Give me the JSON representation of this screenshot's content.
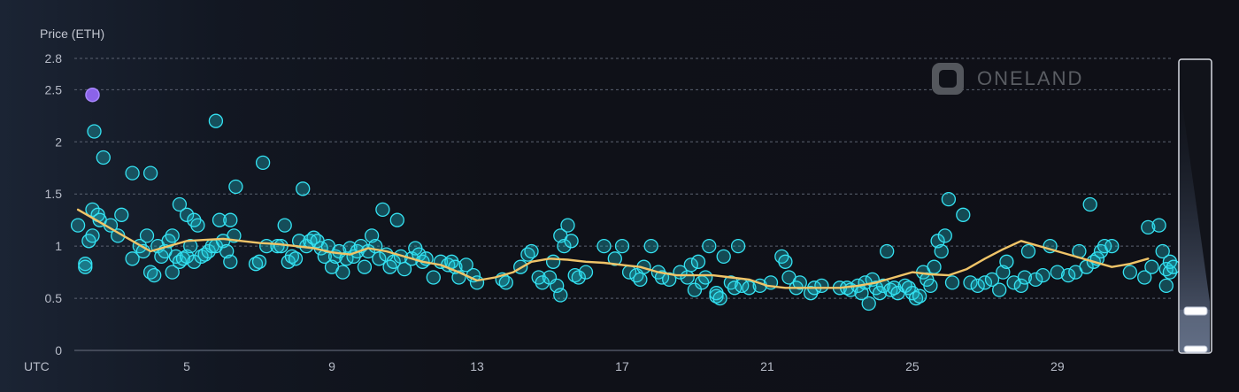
{
  "chart_data": {
    "type": "scatter",
    "ylabel": "Price (ETH)",
    "x_axis_label": "UTC",
    "ylim": [
      0,
      2.8
    ],
    "y_ticks": [
      {
        "value": 0,
        "label": "0"
      },
      {
        "value": 0.5,
        "label": "0.5"
      },
      {
        "value": 1,
        "label": "1"
      },
      {
        "value": 1.5,
        "label": "1.5"
      },
      {
        "value": 2,
        "label": "2"
      },
      {
        "value": 2.5,
        "label": "2.5"
      },
      {
        "value": 2.8,
        "label": "2.8"
      }
    ],
    "xlim": [
      1.9,
      32.2
    ],
    "x_ticks": [
      {
        "value": 5,
        "label": "5"
      },
      {
        "value": 9,
        "label": "9"
      },
      {
        "value": 13,
        "label": "13"
      },
      {
        "value": 17,
        "label": "17"
      },
      {
        "value": 21,
        "label": "21"
      },
      {
        "value": 25,
        "label": "25"
      },
      {
        "value": 29,
        "label": "29"
      }
    ],
    "grid": "horizontal dashed",
    "highlight_point": {
      "x": 2.4,
      "y": 2.45,
      "color": "#8b63e8"
    },
    "sales": [
      [
        2.0,
        1.2
      ],
      [
        2.2,
        0.83
      ],
      [
        2.2,
        0.8
      ],
      [
        2.3,
        1.05
      ],
      [
        2.4,
        1.35
      ],
      [
        2.4,
        1.1
      ],
      [
        2.45,
        2.1
      ],
      [
        2.55,
        1.3
      ],
      [
        2.6,
        1.25
      ],
      [
        2.7,
        1.85
      ],
      [
        2.9,
        1.2
      ],
      [
        3.1,
        1.1
      ],
      [
        3.2,
        1.3
      ],
      [
        3.5,
        1.7
      ],
      [
        3.5,
        0.88
      ],
      [
        3.7,
        1.0
      ],
      [
        3.8,
        0.95
      ],
      [
        3.9,
        1.1
      ],
      [
        4.0,
        1.7
      ],
      [
        4.0,
        0.75
      ],
      [
        4.1,
        0.72
      ],
      [
        4.2,
        1.0
      ],
      [
        4.3,
        0.9
      ],
      [
        4.4,
        0.95
      ],
      [
        4.5,
        1.05
      ],
      [
        4.6,
        0.75
      ],
      [
        4.6,
        1.1
      ],
      [
        4.7,
        0.9
      ],
      [
        4.8,
        1.4
      ],
      [
        4.8,
        0.85
      ],
      [
        4.9,
        0.88
      ],
      [
        5.0,
        0.9
      ],
      [
        5.0,
        1.3
      ],
      [
        5.1,
        1.0
      ],
      [
        5.2,
        0.85
      ],
      [
        5.2,
        1.25
      ],
      [
        5.3,
        1.2
      ],
      [
        5.4,
        0.9
      ],
      [
        5.5,
        0.92
      ],
      [
        5.6,
        0.95
      ],
      [
        5.7,
        1.0
      ],
      [
        5.8,
        1.0
      ],
      [
        5.8,
        2.2
      ],
      [
        5.9,
        1.25
      ],
      [
        6.0,
        1.05
      ],
      [
        6.1,
        0.95
      ],
      [
        6.2,
        1.25
      ],
      [
        6.2,
        0.85
      ],
      [
        6.3,
        1.1
      ],
      [
        6.35,
        1.57
      ],
      [
        6.9,
        0.83
      ],
      [
        7.0,
        0.85
      ],
      [
        7.1,
        1.8
      ],
      [
        7.2,
        1.0
      ],
      [
        7.5,
        1.0
      ],
      [
        7.6,
        1.0
      ],
      [
        7.7,
        1.2
      ],
      [
        7.8,
        0.85
      ],
      [
        7.9,
        0.9
      ],
      [
        8.0,
        0.88
      ],
      [
        8.1,
        1.05
      ],
      [
        8.2,
        1.55
      ],
      [
        8.3,
        1.0
      ],
      [
        8.4,
        1.05
      ],
      [
        8.5,
        1.08
      ],
      [
        8.6,
        1.05
      ],
      [
        8.7,
        0.98
      ],
      [
        8.8,
        0.9
      ],
      [
        8.9,
        1.0
      ],
      [
        9.0,
        0.8
      ],
      [
        9.1,
        0.9
      ],
      [
        9.2,
        0.95
      ],
      [
        9.3,
        0.75
      ],
      [
        9.4,
        0.88
      ],
      [
        9.5,
        0.98
      ],
      [
        9.6,
        0.9
      ],
      [
        9.7,
        0.95
      ],
      [
        9.8,
        1.0
      ],
      [
        9.9,
        0.8
      ],
      [
        10.0,
        0.95
      ],
      [
        10.1,
        1.1
      ],
      [
        10.2,
        1.0
      ],
      [
        10.3,
        0.88
      ],
      [
        10.4,
        1.35
      ],
      [
        10.5,
        0.92
      ],
      [
        10.6,
        0.8
      ],
      [
        10.7,
        0.85
      ],
      [
        10.8,
        1.25
      ],
      [
        10.9,
        0.9
      ],
      [
        11.0,
        0.78
      ],
      [
        11.2,
        0.88
      ],
      [
        11.3,
        0.98
      ],
      [
        11.4,
        0.92
      ],
      [
        11.5,
        0.85
      ],
      [
        11.6,
        0.88
      ],
      [
        11.8,
        0.7
      ],
      [
        12.0,
        0.85
      ],
      [
        12.2,
        0.82
      ],
      [
        12.3,
        0.85
      ],
      [
        12.4,
        0.8
      ],
      [
        12.5,
        0.7
      ],
      [
        12.7,
        0.82
      ],
      [
        12.9,
        0.72
      ],
      [
        13.0,
        0.65
      ],
      [
        13.7,
        0.68
      ],
      [
        13.8,
        0.65
      ],
      [
        14.2,
        0.8
      ],
      [
        14.4,
        0.92
      ],
      [
        14.5,
        0.95
      ],
      [
        14.7,
        0.7
      ],
      [
        14.8,
        0.65
      ],
      [
        15.0,
        0.7
      ],
      [
        15.1,
        0.85
      ],
      [
        15.2,
        0.62
      ],
      [
        15.3,
        0.53
      ],
      [
        15.3,
        1.1
      ],
      [
        15.4,
        1.0
      ],
      [
        15.5,
        1.2
      ],
      [
        15.6,
        1.05
      ],
      [
        15.7,
        0.72
      ],
      [
        15.8,
        0.7
      ],
      [
        16.0,
        0.75
      ],
      [
        16.5,
        1.0
      ],
      [
        16.8,
        0.88
      ],
      [
        17.0,
        1.0
      ],
      [
        17.2,
        0.75
      ],
      [
        17.4,
        0.72
      ],
      [
        17.5,
        0.68
      ],
      [
        17.6,
        0.8
      ],
      [
        17.8,
        1.0
      ],
      [
        18.0,
        0.75
      ],
      [
        18.1,
        0.7
      ],
      [
        18.3,
        0.68
      ],
      [
        18.6,
        0.75
      ],
      [
        18.8,
        0.7
      ],
      [
        18.9,
        0.82
      ],
      [
        19.0,
        0.58
      ],
      [
        19.1,
        0.85
      ],
      [
        19.2,
        0.65
      ],
      [
        19.3,
        0.7
      ],
      [
        19.4,
        1.0
      ],
      [
        19.6,
        0.52
      ],
      [
        19.6,
        0.55
      ],
      [
        19.7,
        0.5
      ],
      [
        19.8,
        0.9
      ],
      [
        20.0,
        0.65
      ],
      [
        20.1,
        0.6
      ],
      [
        20.2,
        1.0
      ],
      [
        20.3,
        0.62
      ],
      [
        20.5,
        0.6
      ],
      [
        20.8,
        0.62
      ],
      [
        21.1,
        0.65
      ],
      [
        21.4,
        0.9
      ],
      [
        21.5,
        0.85
      ],
      [
        21.6,
        0.7
      ],
      [
        21.8,
        0.6
      ],
      [
        21.9,
        0.65
      ],
      [
        22.2,
        0.55
      ],
      [
        22.3,
        0.6
      ],
      [
        22.5,
        0.62
      ],
      [
        23.0,
        0.6
      ],
      [
        23.2,
        0.6
      ],
      [
        23.3,
        0.58
      ],
      [
        23.5,
        0.62
      ],
      [
        23.6,
        0.55
      ],
      [
        23.7,
        0.65
      ],
      [
        23.8,
        0.45
      ],
      [
        23.9,
        0.68
      ],
      [
        24.0,
        0.6
      ],
      [
        24.1,
        0.55
      ],
      [
        24.2,
        0.62
      ],
      [
        24.3,
        0.95
      ],
      [
        24.4,
        0.58
      ],
      [
        24.5,
        0.6
      ],
      [
        24.6,
        0.55
      ],
      [
        24.8,
        0.62
      ],
      [
        24.9,
        0.6
      ],
      [
        25.0,
        0.55
      ],
      [
        25.1,
        0.5
      ],
      [
        25.2,
        0.52
      ],
      [
        25.3,
        0.75
      ],
      [
        25.4,
        0.68
      ],
      [
        25.5,
        0.62
      ],
      [
        25.6,
        0.8
      ],
      [
        25.7,
        1.05
      ],
      [
        25.8,
        0.95
      ],
      [
        25.9,
        1.1
      ],
      [
        26.0,
        1.45
      ],
      [
        26.1,
        0.65
      ],
      [
        26.4,
        1.3
      ],
      [
        26.6,
        0.65
      ],
      [
        26.8,
        0.62
      ],
      [
        27.0,
        0.65
      ],
      [
        27.2,
        0.68
      ],
      [
        27.4,
        0.58
      ],
      [
        27.5,
        0.75
      ],
      [
        27.6,
        0.85
      ],
      [
        27.8,
        0.65
      ],
      [
        28.0,
        0.62
      ],
      [
        28.1,
        0.7
      ],
      [
        28.2,
        0.95
      ],
      [
        28.4,
        0.68
      ],
      [
        28.6,
        0.72
      ],
      [
        28.8,
        1.0
      ],
      [
        29.0,
        0.75
      ],
      [
        29.3,
        0.72
      ],
      [
        29.5,
        0.75
      ],
      [
        29.6,
        0.95
      ],
      [
        29.8,
        0.8
      ],
      [
        29.9,
        1.4
      ],
      [
        30.0,
        0.85
      ],
      [
        30.1,
        0.88
      ],
      [
        30.2,
        0.95
      ],
      [
        30.3,
        1.0
      ],
      [
        30.5,
        1.0
      ],
      [
        31.0,
        0.75
      ],
      [
        31.4,
        0.7
      ],
      [
        31.5,
        1.18
      ],
      [
        31.6,
        0.8
      ],
      [
        31.8,
        1.2
      ],
      [
        31.9,
        0.95
      ],
      [
        32.0,
        0.78
      ],
      [
        32.0,
        0.62
      ],
      [
        32.1,
        0.75
      ],
      [
        32.1,
        0.85
      ],
      [
        32.2,
        0.8
      ]
    ],
    "average_line": [
      [
        2.0,
        1.35
      ],
      [
        2.5,
        1.25
      ],
      [
        3.0,
        1.15
      ],
      [
        3.5,
        1.05
      ],
      [
        4.0,
        0.95
      ],
      [
        4.5,
        1.0
      ],
      [
        5.0,
        1.05
      ],
      [
        5.5,
        1.06
      ],
      [
        6.0,
        1.07
      ],
      [
        6.5,
        1.05
      ],
      [
        7.0,
        1.03
      ],
      [
        7.5,
        1.02
      ],
      [
        8.0,
        1.0
      ],
      [
        8.5,
        0.98
      ],
      [
        9.0,
        0.94
      ],
      [
        9.5,
        0.92
      ],
      [
        10.0,
        0.98
      ],
      [
        10.5,
        0.95
      ],
      [
        11.0,
        0.9
      ],
      [
        11.5,
        0.85
      ],
      [
        12.0,
        0.82
      ],
      [
        12.5,
        0.75
      ],
      [
        13.0,
        0.67
      ],
      [
        13.5,
        0.7
      ],
      [
        14.0,
        0.75
      ],
      [
        14.5,
        0.85
      ],
      [
        15.0,
        0.88
      ],
      [
        15.5,
        0.87
      ],
      [
        16.0,
        0.85
      ],
      [
        16.5,
        0.84
      ],
      [
        17.0,
        0.82
      ],
      [
        17.5,
        0.8
      ],
      [
        18.0,
        0.75
      ],
      [
        18.5,
        0.72
      ],
      [
        19.0,
        0.72
      ],
      [
        19.5,
        0.72
      ],
      [
        20.0,
        0.7
      ],
      [
        20.5,
        0.68
      ],
      [
        21.0,
        0.62
      ],
      [
        21.5,
        0.6
      ],
      [
        22.0,
        0.6
      ],
      [
        22.5,
        0.6
      ],
      [
        23.0,
        0.6
      ],
      [
        23.5,
        0.62
      ],
      [
        24.0,
        0.65
      ],
      [
        24.5,
        0.7
      ],
      [
        25.0,
        0.75
      ],
      [
        25.5,
        0.73
      ],
      [
        26.0,
        0.72
      ],
      [
        26.5,
        0.78
      ],
      [
        27.0,
        0.88
      ],
      [
        27.5,
        0.97
      ],
      [
        28.0,
        1.05
      ],
      [
        28.5,
        1.0
      ],
      [
        29.0,
        0.95
      ],
      [
        29.5,
        0.9
      ],
      [
        30.0,
        0.85
      ],
      [
        30.5,
        0.8
      ],
      [
        31.0,
        0.83
      ],
      [
        31.5,
        0.88
      ]
    ],
    "colors": {
      "sales_fill": "#1fc6d6",
      "sales_stroke": "#35e2f2",
      "average_line": "#f0c468",
      "highlight": "#8b63e8",
      "grid": "#5b6271",
      "tick_text": "#b7bcc8"
    }
  },
  "watermark": {
    "brand": "ONELAND",
    "icon": "oneland-logo-icon"
  },
  "range_slider": {
    "icon_top": "slider-handle-icon",
    "icon_bottom": "slider-handle-icon",
    "selected_range": [
      0.0,
      0.19
    ]
  }
}
